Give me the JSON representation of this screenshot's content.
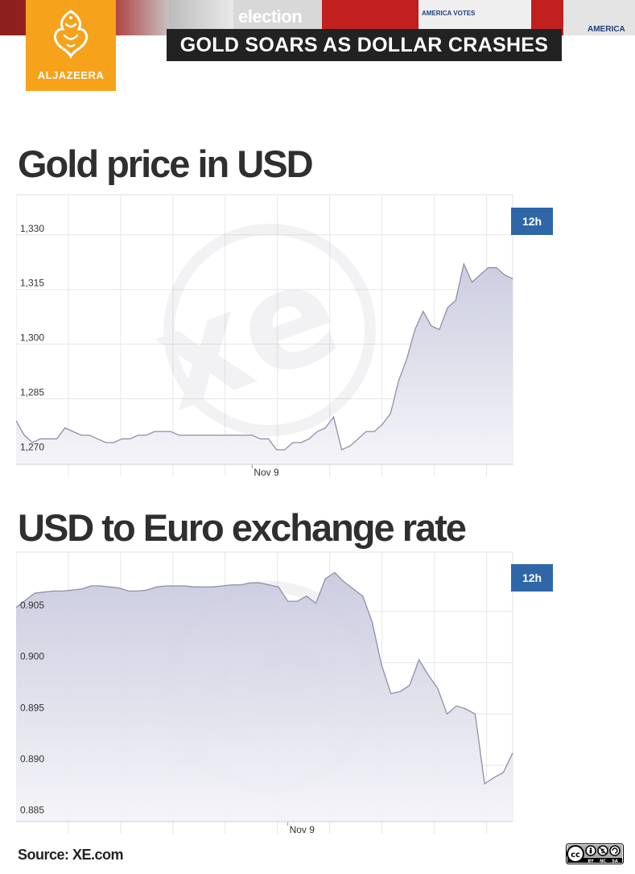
{
  "header": {
    "banner_election_word": "election",
    "banner_votes_word": "AMERICA VOTES",
    "banner_america_word": "AMERICA",
    "logo_text": "ALJAZEERA",
    "headline": "GOLD SOARS AS DOLLAR CRASHES"
  },
  "colors": {
    "brand_orange": "#f7a21b",
    "headline_bg": "#222222",
    "range_button": "#2f66a8",
    "line": "#8d90a8",
    "fill": "#dcdce8"
  },
  "gold": {
    "title": "Gold price in USD",
    "range_label": "12h"
  },
  "euro": {
    "title": "USD to Euro exchange rate",
    "range_label": "12h"
  },
  "footer": {
    "source": "Source: XE.com",
    "license_icon": "creative-commons-by-nc-sa-icon",
    "license_labels": [
      "BY",
      "NC",
      "SA"
    ]
  },
  "chart_data": [
    {
      "type": "area",
      "title": "Gold price in USD",
      "xlabel": "",
      "ylabel": "",
      "ylim": [
        1267,
        1341
      ],
      "yticks": [
        1270,
        1285,
        1300,
        1315,
        1330
      ],
      "ytick_labels": [
        "1,270",
        "1,285",
        "1,300",
        "1,315",
        "1,330"
      ],
      "xtick_labels": [
        {
          "label": "Nov 9",
          "index": 29
        }
      ],
      "grid": true,
      "legend": "none",
      "series": [
        {
          "values": [
            1279,
            1275,
            1273,
            1274,
            1274,
            1274,
            1277,
            1276,
            1275,
            1275,
            1274,
            1273,
            1273,
            1274,
            1274,
            1275,
            1275,
            1276,
            1276,
            1276,
            1275,
            1275,
            1275,
            1275,
            1275,
            1275,
            1275,
            1275,
            1275,
            1275,
            1274,
            1274,
            1271,
            1271,
            1273,
            1273,
            1274,
            1276,
            1277,
            1280,
            1271,
            1272,
            1274,
            1276,
            1276,
            1278,
            1281,
            1290,
            1296,
            1304,
            1309,
            1305,
            1304,
            1310,
            1312,
            1322,
            1317,
            1319,
            1321,
            1321,
            1319,
            1318
          ]
        }
      ]
    },
    {
      "type": "area",
      "title": "USD to Euro exchange rate",
      "xlabel": "",
      "ylabel": "",
      "ylim": [
        0.8845,
        0.9108
      ],
      "yticks": [
        0.885,
        0.89,
        0.895,
        0.9,
        0.905
      ],
      "ytick_labels": [
        "0.885",
        "0.890",
        "0.895",
        "0.900",
        "0.905"
      ],
      "xtick_labels": [
        {
          "label": "Nov 9",
          "index": 29
        }
      ],
      "grid": true,
      "legend": "none",
      "series": [
        {
          "values": [
            0.9054,
            0.9061,
            0.9068,
            0.9069,
            0.907,
            0.907,
            0.9071,
            0.9072,
            0.9075,
            0.9075,
            0.9074,
            0.9073,
            0.907,
            0.907,
            0.9071,
            0.9074,
            0.9075,
            0.9075,
            0.9075,
            0.9074,
            0.9074,
            0.9074,
            0.9075,
            0.9076,
            0.9076,
            0.9078,
            0.9078,
            0.9076,
            0.9074,
            0.906,
            0.906,
            0.9065,
            0.9058,
            0.9082,
            0.9088,
            0.9079,
            0.9072,
            0.9065,
            0.904,
            0.8998,
            0.897,
            0.8972,
            0.8978,
            0.9003,
            0.8988,
            0.8975,
            0.895,
            0.8958,
            0.8955,
            0.895,
            0.8882,
            0.8888,
            0.8893,
            0.8912
          ]
        }
      ]
    }
  ]
}
